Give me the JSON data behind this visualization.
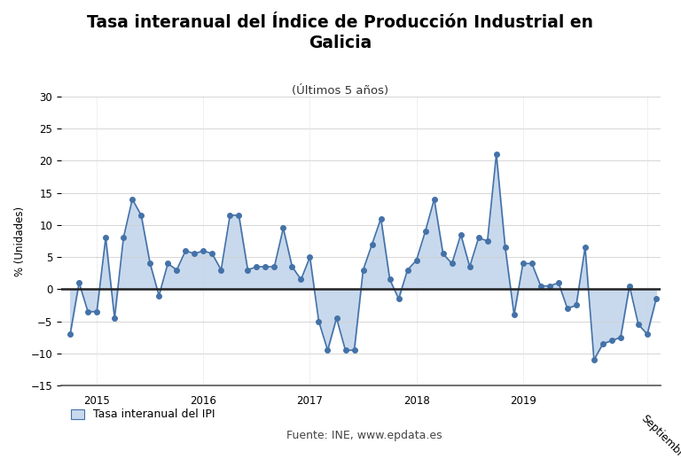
{
  "title": "Tasa interanual del Índice de Producción Industrial en\nGalicia",
  "subtitle": "(Últimos 5 años)",
  "ylabel": "% (Unidades)",
  "legend_label": "Tasa interanual del IPI",
  "source": "Fuente: INE, www.epdata.es",
  "line_color": "#4472a8",
  "fill_color": "#c8d9ed",
  "marker_color": "#4472a8",
  "background_color": "#ffffff",
  "ylim": [
    -15,
    30
  ],
  "yticks": [
    -15,
    -10,
    -5,
    0,
    5,
    10,
    15,
    20,
    25,
    30
  ],
  "x_labels": [
    "2015",
    "2016",
    "2017",
    "2018",
    "2019",
    "Septiembre"
  ],
  "values": [
    -7.0,
    1.0,
    -3.5,
    -3.5,
    8.0,
    -4.5,
    8.0,
    14.0,
    11.5,
    4.0,
    -1.0,
    4.0,
    3.0,
    6.0,
    5.5,
    6.0,
    5.5,
    3.0,
    11.5,
    11.5,
    3.0,
    3.5,
    3.5,
    3.5,
    9.5,
    3.5,
    1.5,
    5.0,
    -5.0,
    -9.5,
    -4.5,
    -9.5,
    -9.5,
    3.0,
    7.0,
    11.0,
    1.5,
    -1.5,
    3.0,
    4.5,
    9.0,
    14.0,
    5.5,
    4.0,
    8.5,
    3.5,
    8.0,
    7.5,
    21.0,
    6.5,
    -4.0,
    4.0,
    4.0,
    0.5,
    0.5,
    1.0,
    -3.0,
    -2.5,
    6.5,
    -11.0,
    -8.5,
    -8.0,
    -7.5,
    0.5,
    -5.5,
    -7.0,
    -1.5
  ],
  "x_tick_positions": [
    3,
    15,
    27,
    39,
    51,
    65
  ],
  "grid_color": "#d0d0d0",
  "zero_line_color": "#222222"
}
